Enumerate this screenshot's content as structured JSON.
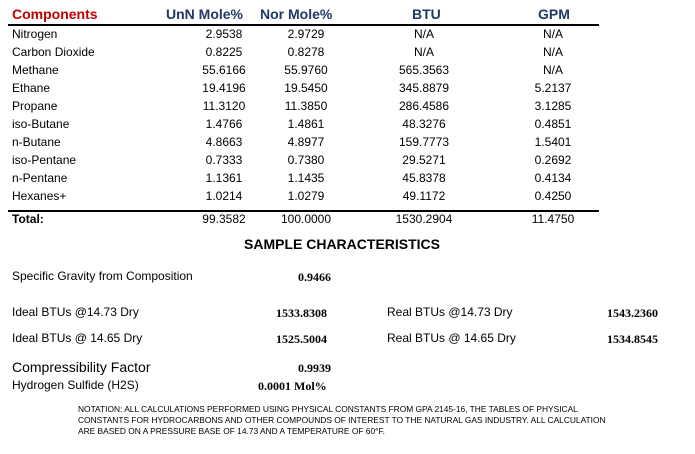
{
  "table": {
    "headers": [
      "Components",
      "UnN Mole%",
      "Nor Mole%",
      "BTU",
      "GPM"
    ],
    "rows": [
      {
        "name": "Nitrogen",
        "unn": "2.9538",
        "nor": "2.9729",
        "btu": "N/A",
        "gpm": "N/A"
      },
      {
        "name": "Carbon Dioxide",
        "unn": "0.8225",
        "nor": "0.8278",
        "btu": "N/A",
        "gpm": "N/A"
      },
      {
        "name": "Methane",
        "unn": "55.6166",
        "nor": "55.9760",
        "btu": "565.3563",
        "gpm": "N/A"
      },
      {
        "name": "Ethane",
        "unn": "19.4196",
        "nor": "19.5450",
        "btu": "345.8879",
        "gpm": "5.2137"
      },
      {
        "name": "Propane",
        "unn": "11.3120",
        "nor": "11.3850",
        "btu": "286.4586",
        "gpm": "3.1285"
      },
      {
        "name": "iso-Butane",
        "unn": "1.4766",
        "nor": "1.4861",
        "btu": "48.3276",
        "gpm": "0.4851"
      },
      {
        "name": "n-Butane",
        "unn": "4.8663",
        "nor": "4.8977",
        "btu": "159.7773",
        "gpm": "1.5401"
      },
      {
        "name": "iso-Pentane",
        "unn": "0.7333",
        "nor": "0.7380",
        "btu": "29.5271",
        "gpm": "0.2692"
      },
      {
        "name": "n-Pentane",
        "unn": "1.1361",
        "nor": "1.1435",
        "btu": "45.8378",
        "gpm": "0.4134"
      },
      {
        "name": "Hexanes+",
        "unn": "1.0214",
        "nor": "1.0279",
        "btu": "49.1172",
        "gpm": "0.4250"
      }
    ],
    "total": {
      "name": "Total:",
      "unn": "99.3582",
      "nor": "100.0000",
      "btu": "1530.2904",
      "gpm": "11.4750"
    }
  },
  "characteristics": {
    "title": "SAMPLE CHARACTERISTICS",
    "specific_gravity_label": "Specific Gravity from Composition",
    "specific_gravity_value": "0.9466",
    "ideal_1473_label": "Ideal BTUs @14.73 Dry",
    "ideal_1473_value": "1533.8308",
    "ideal_1465_label": "Ideal BTUs @ 14.65 Dry",
    "ideal_1465_value": "1525.5004",
    "real_1473_label": "Real BTUs @14.73 Dry",
    "real_1473_value": "1543.2360",
    "real_1465_label": "Real BTUs @ 14.65 Dry",
    "real_1465_value": "1534.8545",
    "compressibility_label": "Compressibility Factor",
    "compressibility_value": "0.9939",
    "h2s_label": "Hydrogen Sulfide (H2S)",
    "h2s_value": "0.0001 Mol%"
  },
  "notation": "NOTATION:    ALL CALCULATIONS PERFORMED USING PHYSICAL CONSTANTS FROM GPA 2145-16, THE TABLES OF PHYSICAL CONSTANTS FOR HYDROCARBONS AND OTHER COMPOUNDS OF INTEREST TO THE NATURAL GAS INDUSTRY.  ALL CALCULATION ARE BASED ON A PRESSURE BASE OF 14.73 AND A TEMPERATURE OF 60°F."
}
